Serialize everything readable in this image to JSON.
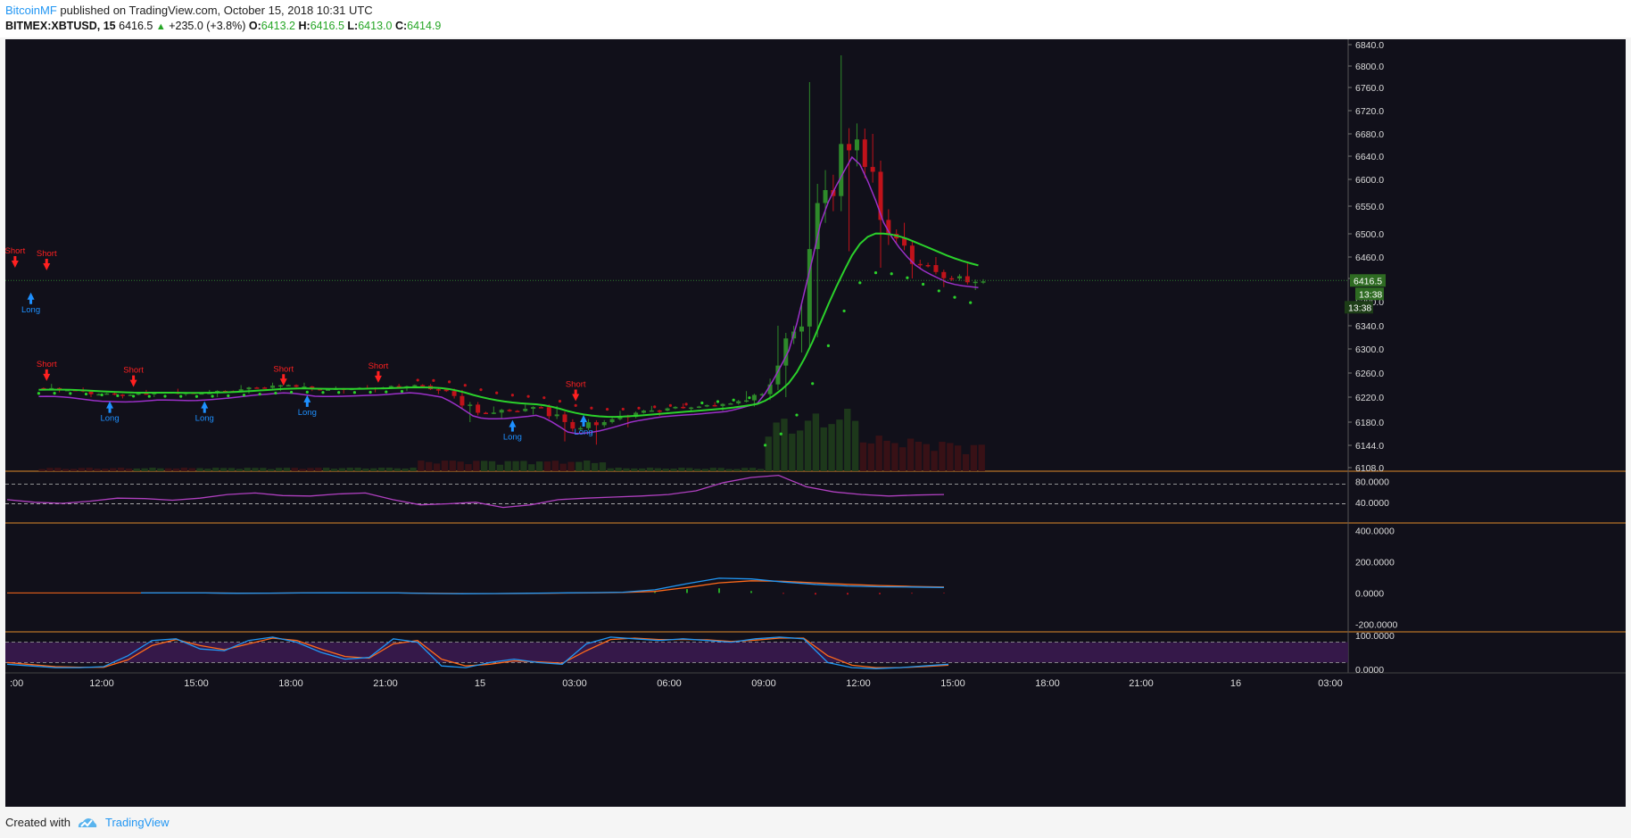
{
  "header": {
    "author": "BitcoinMF",
    "published": "published on TradingView.com, October 15, 2018 10:31 UTC",
    "symbol": "BITMEX:XBTUSD, 15",
    "last": "6416.5",
    "change": "+235.0 (+3.8%)",
    "o_label": "O:",
    "o_value": "6413.2",
    "h_label": "H:",
    "h_value": "6416.5",
    "l_label": "L:",
    "l_value": "6413.0",
    "c_label": "C:",
    "c_value": "6414.9"
  },
  "footer": {
    "created_with": "Created with",
    "brand": "TradingView"
  },
  "colors": {
    "background": "#11101a",
    "up": "#2e8a2a",
    "down": "#c0121a",
    "ema": "#2bd12b",
    "purple": "#9b30c8",
    "long": "#1e90ff",
    "short": "#ff2020",
    "separator": "#e08a2a",
    "rsi": "#b040c0",
    "macd": "#2196f3",
    "signal": "#ff6a1a",
    "stoch_band": "#3a1a4f"
  },
  "chart_data": [
    {
      "type": "candlestick",
      "title": "BITMEX:XBTUSD, 15",
      "x_ticks": [
        ":00",
        "12:00",
        "15:00",
        "18:00",
        "21:00",
        "15",
        "03:00",
        "06:00",
        "09:00",
        "12:00",
        "15:00",
        "18:00",
        "21:00",
        "16",
        "03:00"
      ],
      "y_ticks": [
        6108.0,
        6144.0,
        6180.0,
        6220.0,
        6260.0,
        6300.0,
        6340.0,
        6380.0,
        6420.0,
        6460.0,
        6500.0,
        6550.0,
        6600.0,
        6640.0,
        6680.0,
        6720.0,
        6760.0,
        6800.0,
        6840.0
      ],
      "y_tick_labels": [
        "6108.0",
        "6144.0",
        "6180.0",
        "6220.0",
        "6260.0",
        "6300.0",
        "6340.0",
        "6380.0",
        "6420.0",
        "6460.0",
        "6500.0",
        "6550.0",
        "6600.0",
        "6640.0",
        "6680.0",
        "6720.0",
        "6760.0",
        "6800.0",
        "6840.0"
      ],
      "ylim": [
        6105,
        6860
      ],
      "last_price_label": "6416.5",
      "countdown_label": "13:38",
      "ohlc_hourly": [
        [
          6235,
          6242,
          6228,
          6232
        ],
        [
          6232,
          6236,
          6220,
          6225
        ],
        [
          6225,
          6230,
          6218,
          6224
        ],
        [
          6224,
          6232,
          6220,
          6228
        ],
        [
          6228,
          6234,
          6222,
          6226
        ],
        [
          6226,
          6232,
          6220,
          6230
        ],
        [
          6230,
          6240,
          6226,
          6236
        ],
        [
          6236,
          6244,
          6230,
          6240
        ],
        [
          6240,
          6244,
          6230,
          6232
        ],
        [
          6232,
          6238,
          6226,
          6234
        ],
        [
          6234,
          6240,
          6228,
          6236
        ],
        [
          6236,
          6242,
          6230,
          6240
        ],
        [
          6240,
          6242,
          6225,
          6230
        ],
        [
          6230,
          6232,
          6180,
          6195
        ],
        [
          6195,
          6205,
          6185,
          6198
        ],
        [
          6198,
          6208,
          6192,
          6204
        ],
        [
          6204,
          6206,
          6150,
          6170
        ],
        [
          6170,
          6185,
          6145,
          6180
        ],
        [
          6180,
          6198,
          6172,
          6195
        ],
        [
          6195,
          6206,
          6190,
          6202
        ],
        [
          6202,
          6210,
          6196,
          6205
        ],
        [
          6205,
          6212,
          6198,
          6210
        ],
        [
          6210,
          6230,
          6205,
          6225
        ],
        [
          6225,
          6340,
          6220,
          6330
        ],
        [
          6330,
          6770,
          6320,
          6580
        ],
        [
          6580,
          6820,
          6470,
          6670
        ],
        [
          6670,
          6680,
          6440,
          6500
        ],
        [
          6500,
          6520,
          6420,
          6445
        ],
        [
          6445,
          6460,
          6405,
          6420
        ],
        [
          6420,
          6448,
          6400,
          6415
        ]
      ],
      "signals": [
        {
          "label": "Short",
          "time": "10:15",
          "price": 6238
        },
        {
          "label": "Long",
          "time": "12:15",
          "price": 6222
        },
        {
          "label": "Short",
          "time": "13:00",
          "price": 6228
        },
        {
          "label": "Long",
          "time": "15:15",
          "price": 6222
        },
        {
          "label": "Short",
          "time": "17:45",
          "price": 6230
        },
        {
          "label": "Long",
          "time": "18:30",
          "price": 6232
        },
        {
          "label": "Short",
          "time": "20:45",
          "price": 6235
        },
        {
          "label": "Long",
          "time": "01:00",
          "price": 6192
        },
        {
          "label": "Short",
          "time": "03:00",
          "price": 6205
        },
        {
          "label": "Long",
          "time": "03:15",
          "price": 6200
        },
        {
          "label": "Short",
          "time": "09:15",
          "price": 6430
        },
        {
          "label": "Long",
          "time": "09:45",
          "price": 6405
        },
        {
          "label": "Short",
          "time": "10:15",
          "price": 6425
        }
      ]
    },
    {
      "type": "line",
      "title": "RSI",
      "y_tick_labels": [
        "80.0000",
        "40.0000"
      ],
      "ylim": [
        0,
        100
      ],
      "bands": [
        75,
        37
      ],
      "values": [
        45,
        40,
        38,
        42,
        48,
        47,
        44,
        48,
        55,
        58,
        53,
        52,
        56,
        58,
        45,
        35,
        37,
        40,
        30,
        35,
        45,
        48,
        50,
        52,
        55,
        62,
        78,
        88,
        92,
        70,
        60,
        55,
        52,
        54,
        55
      ]
    },
    {
      "type": "line",
      "title": "MACD",
      "y_tick_labels": [
        "400.0000",
        "200.0000",
        "0.0000",
        "-200.0000"
      ],
      "ylim": [
        -250,
        450
      ],
      "series": [
        {
          "values": [
            0,
            0,
            0,
            -2,
            -1,
            0,
            1,
            0,
            0,
            -3,
            -5,
            -4,
            -2,
            0,
            2,
            5,
            20,
            60,
            95,
            90,
            70,
            55,
            45,
            40,
            38,
            35
          ]
        },
        {
          "values": [
            0,
            0,
            0,
            -1,
            -1,
            0,
            0,
            0,
            0,
            -2,
            -4,
            -4,
            -3,
            -1,
            1,
            3,
            10,
            35,
            65,
            78,
            75,
            65,
            55,
            48,
            42,
            38
          ]
        }
      ]
    },
    {
      "type": "line",
      "title": "Stochastic RSI",
      "y_tick_labels": [
        "100.0000",
        "0.0000"
      ],
      "ylim": [
        0,
        100
      ],
      "bands": [
        80,
        20
      ],
      "series": [
        {
          "values": [
            15,
            10,
            5,
            5,
            8,
            40,
            85,
            90,
            60,
            55,
            85,
            95,
            80,
            50,
            30,
            35,
            90,
            80,
            10,
            5,
            20,
            30,
            20,
            15,
            75,
            95,
            90,
            85,
            90,
            85,
            80,
            90,
            95,
            90,
            20,
            5,
            2,
            5,
            10,
            15
          ]
        },
        {
          "values": [
            20,
            14,
            8,
            6,
            6,
            28,
            70,
            88,
            70,
            58,
            75,
            92,
            85,
            60,
            38,
            33,
            75,
            85,
            30,
            10,
            15,
            25,
            22,
            18,
            55,
            88,
            92,
            88,
            88,
            87,
            82,
            86,
            92,
            92,
            40,
            12,
            5,
            5,
            8,
            12
          ]
        }
      ]
    }
  ]
}
